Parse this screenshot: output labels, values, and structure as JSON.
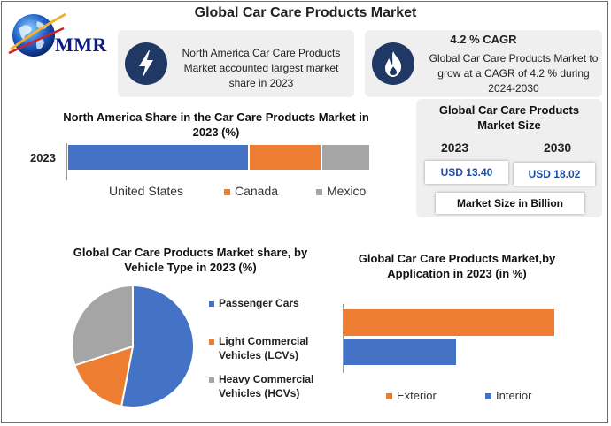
{
  "header": {
    "title": "Global Car Care Products Market"
  },
  "logo": {
    "text": "MMR"
  },
  "cards": [
    {
      "icon": "lightning-icon",
      "text": "North America Car Care Products Market accounted largest market share in 2023"
    },
    {
      "icon": "flame-icon",
      "headline": "4.2 % CAGR",
      "text": "Global Car Care Products Market to grow at a CAGR of 4.2 % during 2024-2030"
    }
  ],
  "market_size": {
    "title": "Global Car Care Products Market Size",
    "years": [
      "2023",
      "2030"
    ],
    "values": [
      "USD 13.40",
      "USD 18.02"
    ],
    "footer": "Market Size in Billion"
  },
  "colors": {
    "blue": "#4472c4",
    "orange": "#ed7d31",
    "gray": "#a5a5a5",
    "navy": "#1f3864"
  },
  "chart_data": [
    {
      "type": "bar",
      "orientation": "horizontal",
      "stacked": true,
      "title": "North America Share in the Car Care Products Market in 2023 (%)",
      "categories": [
        "2023"
      ],
      "series": [
        {
          "name": "United States",
          "values": [
            60
          ],
          "color": "#4472c4"
        },
        {
          "name": "Canada",
          "values": [
            24
          ],
          "color": "#ed7d31"
        },
        {
          "name": "Mexico",
          "values": [
            16
          ],
          "color": "#a5a5a5"
        }
      ],
      "xlim": [
        0,
        100
      ],
      "legend": "bottom"
    },
    {
      "type": "pie",
      "title": "Global Car Care Products Market share, by Vehicle Type in 2023  (%)",
      "labels": [
        "Passenger Cars",
        "Light Commercial Vehicles (LCVs)",
        "Heavy Commercial Vehicles (HCVs)"
      ],
      "values": [
        53,
        17,
        30
      ],
      "colors": [
        "#4472c4",
        "#ed7d31",
        "#a5a5a5"
      ],
      "legend": "right"
    },
    {
      "type": "bar",
      "orientation": "horizontal",
      "title": "Global Car Care Products Market,by Application in 2023 (in %)",
      "series": [
        {
          "name": "Exterior",
          "values": [
            62
          ],
          "color": "#ed7d31"
        },
        {
          "name": "Interior",
          "values": [
            33
          ],
          "color": "#4472c4"
        }
      ],
      "xlim": [
        0,
        65
      ],
      "legend": "bottom"
    }
  ]
}
